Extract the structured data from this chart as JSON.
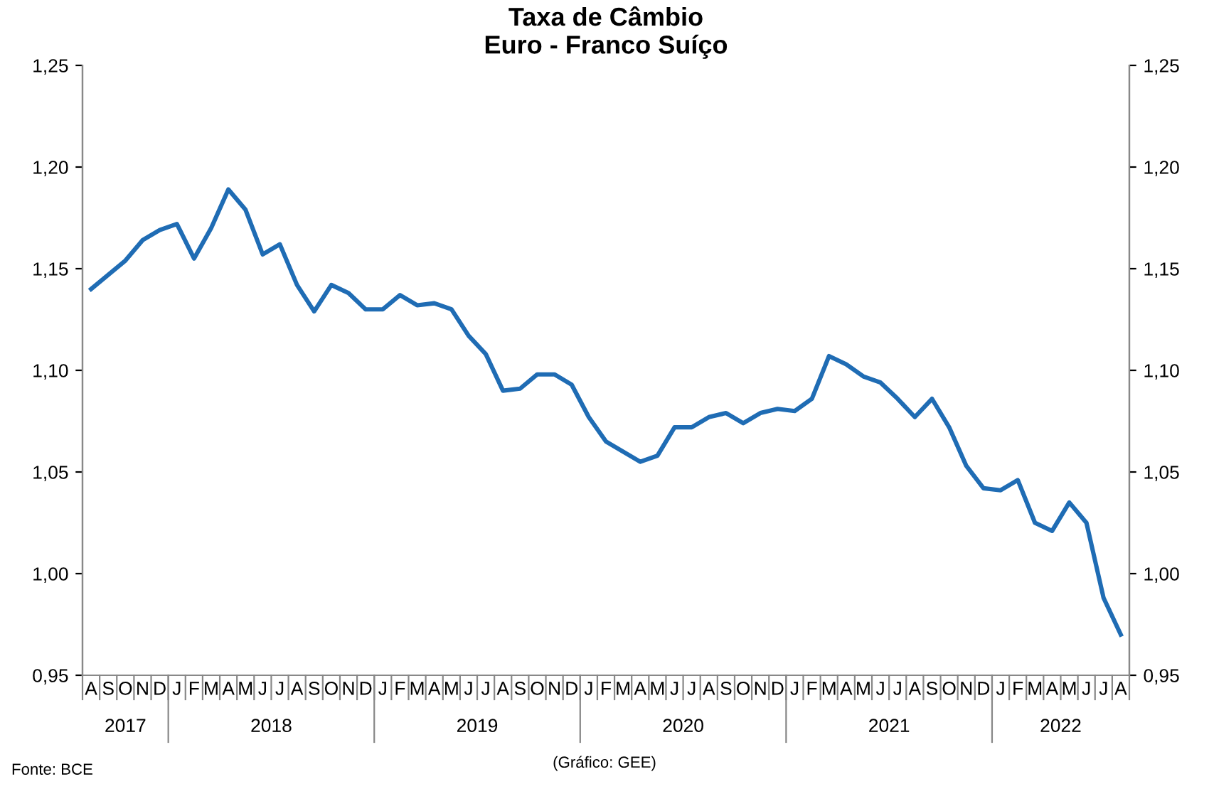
{
  "chart_data": {
    "type": "line",
    "title": "Taxa de Câmbio\nEuro - Franco Suíço",
    "categories": [
      "A",
      "S",
      "O",
      "N",
      "D",
      "J",
      "F",
      "M",
      "A",
      "M",
      "J",
      "J",
      "A",
      "S",
      "O",
      "N",
      "D",
      "J",
      "F",
      "M",
      "A",
      "M",
      "J",
      "J",
      "A",
      "S",
      "O",
      "N",
      "D",
      "J",
      "F",
      "M",
      "A",
      "M",
      "J",
      "J",
      "A",
      "S",
      "O",
      "N",
      "D",
      "J",
      "F",
      "M",
      "A",
      "M",
      "J",
      "J",
      "A",
      "S",
      "O",
      "N",
      "D",
      "J",
      "F",
      "M",
      "A",
      "M",
      "J",
      "J",
      "A"
    ],
    "series": [
      {
        "color": "#1f6cb4",
        "values": [
          1.14,
          1.147,
          1.154,
          1.164,
          1.169,
          1.172,
          1.155,
          1.17,
          1.189,
          1.179,
          1.157,
          1.162,
          1.142,
          1.129,
          1.142,
          1.138,
          1.13,
          1.13,
          1.137,
          1.132,
          1.133,
          1.13,
          1.117,
          1.108,
          1.09,
          1.091,
          1.098,
          1.098,
          1.093,
          1.077,
          1.065,
          1.06,
          1.055,
          1.058,
          1.072,
          1.072,
          1.077,
          1.079,
          1.074,
          1.079,
          1.081,
          1.08,
          1.086,
          1.107,
          1.103,
          1.097,
          1.094,
          1.086,
          1.077,
          1.086,
          1.072,
          1.053,
          1.042,
          1.041,
          1.046,
          1.025,
          1.021,
          1.035,
          1.025,
          0.988,
          0.97
        ]
      }
    ],
    "ylim": [
      0.95,
      1.25
    ],
    "yticks": [
      {
        "value": 0.95,
        "label": "0,95"
      },
      {
        "value": 1.0,
        "label": "1,00"
      },
      {
        "value": 1.05,
        "label": "1,05"
      },
      {
        "value": 1.1,
        "label": "1,10"
      },
      {
        "value": 1.15,
        "label": "1,15"
      },
      {
        "value": 1.2,
        "label": "1,20"
      },
      {
        "value": 1.25,
        "label": "1,25"
      }
    ],
    "y2lim": [
      0.95,
      1.25
    ],
    "y2ticks": [
      {
        "value": 0.95,
        "label": "0,95"
      },
      {
        "value": 1.0,
        "label": "1,00"
      },
      {
        "value": 1.05,
        "label": "1,05"
      },
      {
        "value": 1.1,
        "label": "1,10"
      },
      {
        "value": 1.15,
        "label": "1,15"
      },
      {
        "value": 1.2,
        "label": "1,20"
      },
      {
        "value": 1.25,
        "label": "1,25"
      }
    ],
    "grid": false,
    "legend": false,
    "marker": "none",
    "line_style": "solid",
    "annotations": [
      "2017",
      "2018",
      "2019",
      "2020",
      "2021",
      "2022",
      "Fonte: BCE",
      "(Gráfico: GEE)"
    ]
  }
}
